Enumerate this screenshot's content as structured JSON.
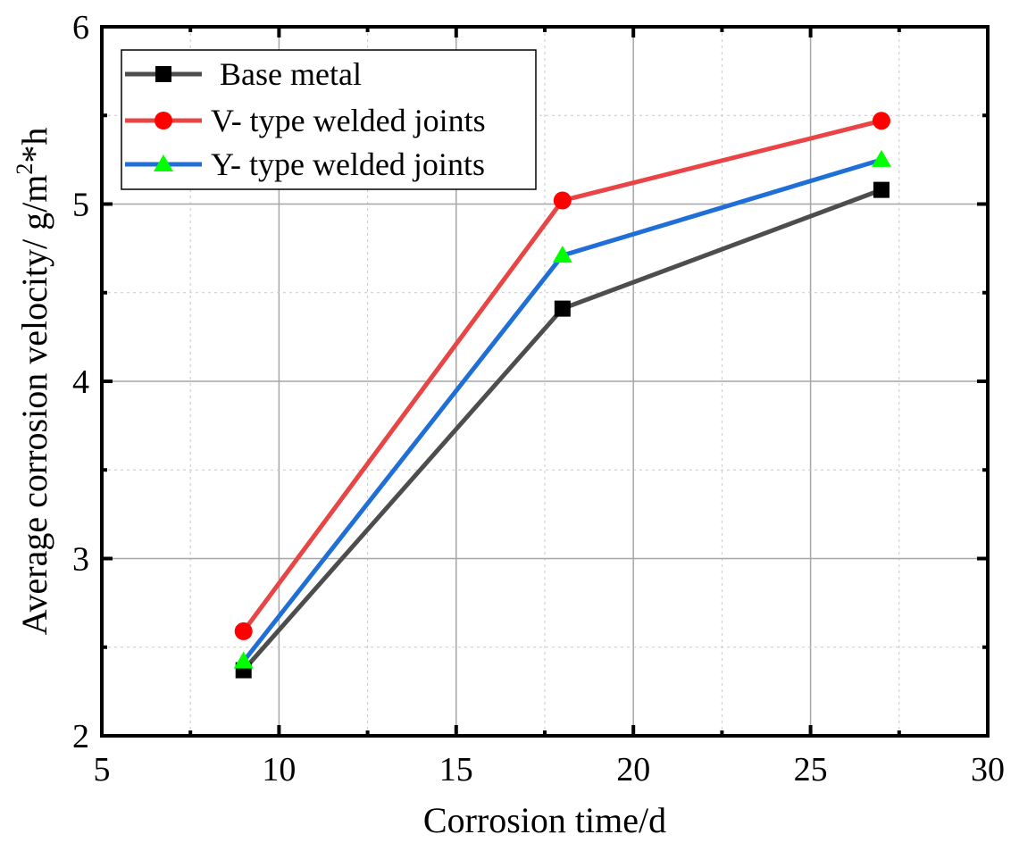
{
  "chart_data": {
    "type": "line",
    "title": "",
    "xlabel": "Corrosion time/d",
    "ylabel_main": "Average corrosion velocity/ g/m",
    "ylabel_sup": "2",
    "ylabel_tail": "*h",
    "xlim": [
      5,
      30
    ],
    "ylim": [
      2,
      6
    ],
    "x_ticks": [
      5,
      10,
      15,
      20,
      25,
      30
    ],
    "y_ticks": [
      2,
      3,
      4,
      5,
      6
    ],
    "grid": true,
    "legend_position": "top-left",
    "x": [
      9,
      18,
      27
    ],
    "series": [
      {
        "name": "Base metal",
        "values": [
          2.37,
          4.41,
          5.08
        ],
        "color": "#4d4d4d",
        "marker": "square",
        "marker_color": "#000000"
      },
      {
        "name": "V- type welded joints",
        "values": [
          2.59,
          5.02,
          5.47
        ],
        "color": "#e84545",
        "marker": "circle",
        "marker_color": "#ff0000"
      },
      {
        "name": "Y- type welded joints",
        "values": [
          2.42,
          4.71,
          5.25
        ],
        "color": "#1f6fd6",
        "marker": "triangle",
        "marker_color": "#00ff00"
      }
    ]
  }
}
